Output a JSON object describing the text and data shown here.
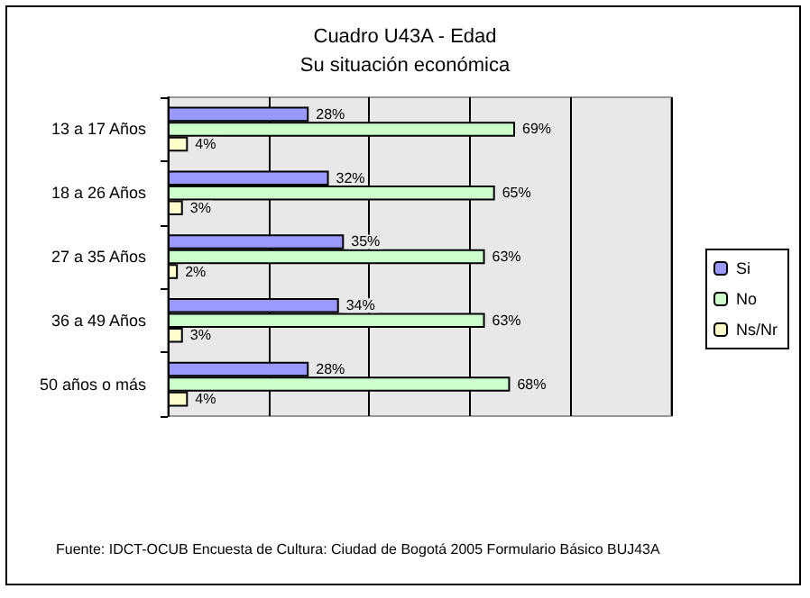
{
  "chart_data": {
    "type": "bar",
    "orientation": "horizontal",
    "title": "Cuadro U43A - Edad",
    "subtitle": "Su situación económica",
    "categories": [
      "13 a 17 Años",
      "18 a 26 Años",
      "27 a 35 Años",
      "36 a 49 Años",
      "50 años o más"
    ],
    "series": [
      {
        "name": "Si",
        "color": "#9999ff",
        "values": [
          28,
          32,
          35,
          34,
          28
        ],
        "value_labels": [
          "28%",
          "32%",
          "35%",
          "34%",
          "28%"
        ]
      },
      {
        "name": "No",
        "color": "#ccffcc",
        "values": [
          69,
          65,
          63,
          63,
          68
        ],
        "value_labels": [
          "69%",
          "65%",
          "63%",
          "63%",
          "68%"
        ]
      },
      {
        "name": "Ns/Nr",
        "color": "#ffffcc",
        "values": [
          4,
          3,
          2,
          3,
          4
        ],
        "value_labels": [
          "4%",
          "3%",
          "2%",
          "3%",
          "4%"
        ]
      }
    ],
    "xlim": [
      0,
      100
    ],
    "tick_labels": "y",
    "grid": "x",
    "legend": "right",
    "annotations": [
      "Fuente: IDCT-OCUB Encuesta de Cultura: Ciudad de Bogotá 2005 Formulario Básico BUJ43A"
    ]
  }
}
